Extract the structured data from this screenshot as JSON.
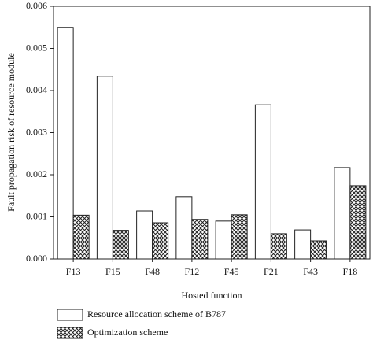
{
  "chart_data": {
    "type": "bar",
    "x_label": "Hosted function",
    "y_label": "Fault propagation risk of resource module",
    "categories": [
      "F13",
      "F15",
      "F48",
      "F12",
      "F45",
      "F21",
      "F43",
      "F18"
    ],
    "series": [
      {
        "name": "Resource allocation scheme of B787",
        "color": "#ffffff",
        "values": [
          0.0055,
          0.00434,
          0.00114,
          0.00148,
          0.0009,
          0.00366,
          0.00069,
          0.00217
        ]
      },
      {
        "name": "Optimization scheme",
        "color": "#ffffff",
        "hatch": "crosshatch",
        "values": [
          0.00104,
          0.00068,
          0.00086,
          0.00094,
          0.00105,
          0.0006,
          0.00043,
          0.00174
        ]
      }
    ],
    "ylim": [
      0,
      0.006
    ],
    "yticks": [
      {
        "value": 0,
        "label": "0.000"
      },
      {
        "value": 0.001,
        "label": "0.001"
      },
      {
        "value": 0.002,
        "label": "0.002"
      },
      {
        "value": 0.003,
        "label": "0.003"
      },
      {
        "value": 0.004,
        "label": "0.004"
      },
      {
        "value": 0.005,
        "label": "0.005"
      },
      {
        "value": 0.006,
        "label": "0.006"
      }
    ],
    "grid": false,
    "legend": "bottom"
  }
}
